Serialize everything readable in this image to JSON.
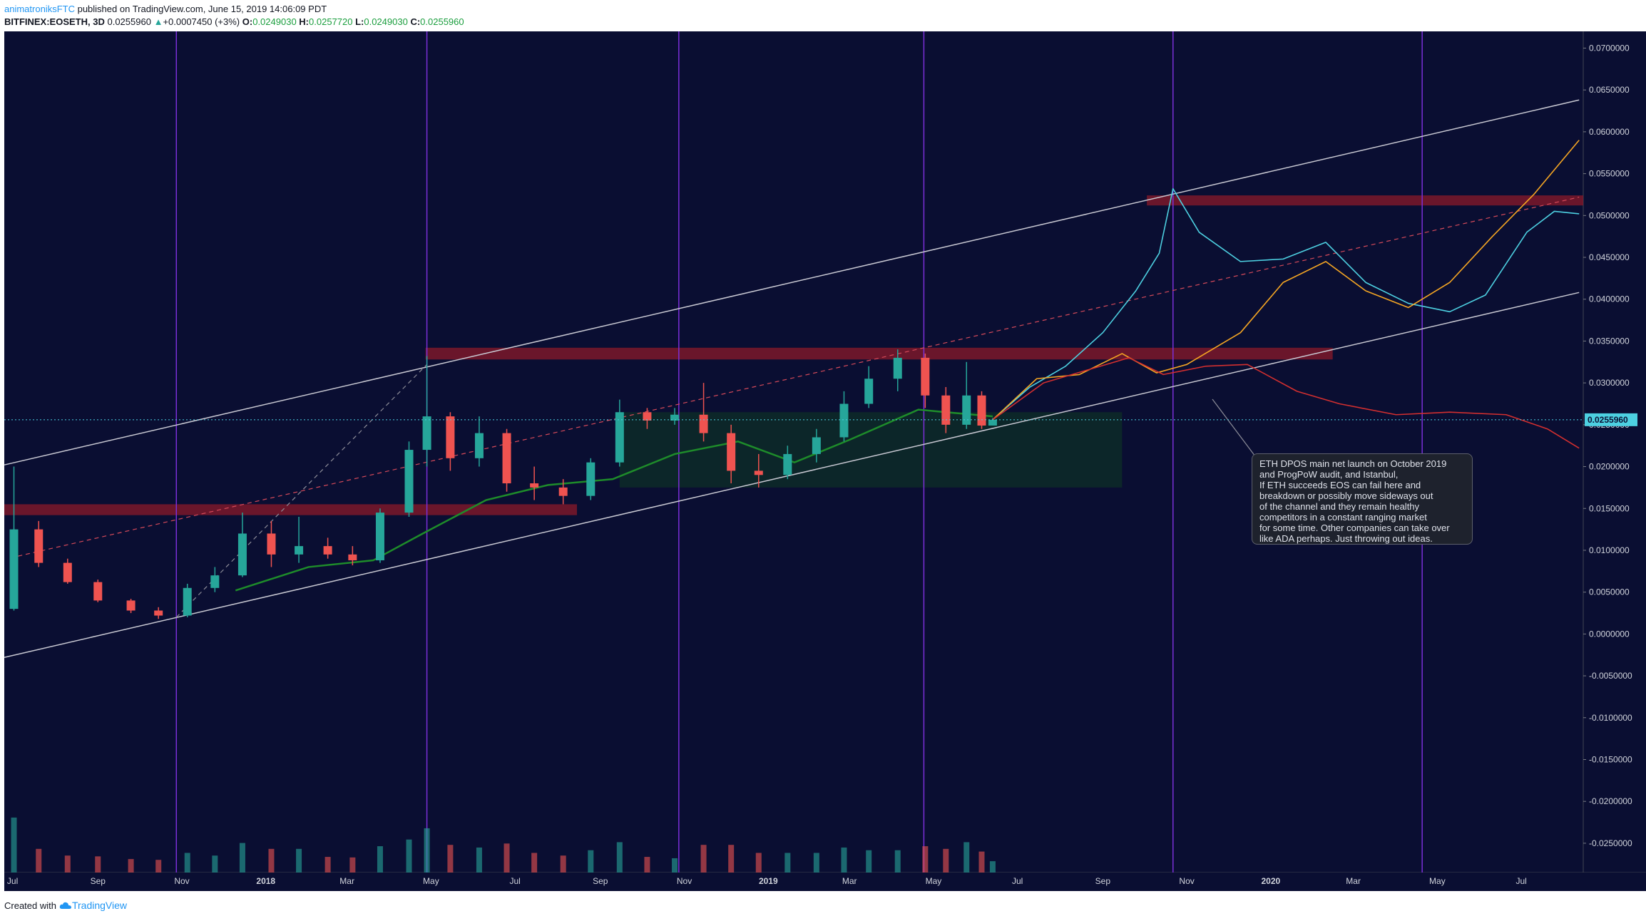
{
  "header": {
    "author": "animatroniksFTC",
    "published": "published on TradingView.com, June 15, 2019 14:06:09 PDT",
    "symbol": "BITFINEX:EOSETH, 3D",
    "last": "0.0255960",
    "change": "+0.0007450 (+3%)",
    "o_label": "O:",
    "o_value": "0.0249030",
    "h_label": "H:",
    "h_value": "0.0257720",
    "l_label": "L:",
    "l_value": "0.0249030",
    "c_label": "C:",
    "c_value": "0.0255960"
  },
  "annotation": "ETH DPOS main net launch on October 2019\nand ProgPoW audit, and Istanbul,\nIf ETH succeeds EOS can fail here and\nbreakdown or possibly move sideways out\nof the channel and they remain healthy\ncompetitors in a constant ranging market\nfor some time. Other companies can take over\nlike ADA perhaps. Just throwing out ideas.",
  "footer": {
    "created_with": "Created with",
    "brand": "TradingView"
  },
  "colors": {
    "background": "#0a0e32",
    "up": "#26a69a",
    "down": "#ef5350",
    "zone": "#8b1a2a",
    "channel": "#c8c8d2",
    "vertical_marker": "#7b2fd8",
    "projection_cyan": "#4dd0e1",
    "projection_orange": "#f5a623",
    "projection_red": "#d32f2f",
    "ma_green": "#1e8c2a",
    "ma_blue": "#2962ff"
  },
  "chart_data": {
    "type": "candlestick",
    "symbol": "BITFINEX:EOSETH",
    "timeframe": "3D",
    "last_price": 0.025596,
    "last_price_label": "0.0255960",
    "ylim": [
      -0.0285,
      0.072
    ],
    "y_ticks": [
      "0.0700000",
      "0.0650000",
      "0.0600000",
      "0.0550000",
      "0.0500000",
      "0.0450000",
      "0.0400000",
      "0.0350000",
      "0.0300000",
      "0.0250000",
      "0.0200000",
      "0.0150000",
      "0.0100000",
      "0.0050000",
      "0.0000000",
      "-0.0050000",
      "-0.0100000",
      "-0.0150000",
      "-0.0200000",
      "-0.0250000"
    ],
    "y_tick_values": [
      0.07,
      0.065,
      0.06,
      0.055,
      0.05,
      0.045,
      0.04,
      0.035,
      0.03,
      0.025,
      0.02,
      0.015,
      0.01,
      0.005,
      0,
      -0.005,
      -0.01,
      -0.015,
      -0.02,
      -0.025
    ],
    "x_range": [
      "2017-06-25",
      "2020-08-15"
    ],
    "x_ticks": [
      {
        "label": "Jul",
        "date": "2017-07-01"
      },
      {
        "label": "Sep",
        "date": "2017-09-01"
      },
      {
        "label": "Nov",
        "date": "2017-11-01"
      },
      {
        "label": "2018",
        "date": "2018-01-01",
        "bold": true
      },
      {
        "label": "Mar",
        "date": "2018-03-01"
      },
      {
        "label": "May",
        "date": "2018-05-01"
      },
      {
        "label": "Jul",
        "date": "2018-07-01"
      },
      {
        "label": "Sep",
        "date": "2018-09-01"
      },
      {
        "label": "Nov",
        "date": "2018-11-01"
      },
      {
        "label": "2019",
        "date": "2019-01-01",
        "bold": true
      },
      {
        "label": "Mar",
        "date": "2019-03-01"
      },
      {
        "label": "May",
        "date": "2019-05-01"
      },
      {
        "label": "Jul",
        "date": "2019-07-01"
      },
      {
        "label": "Sep",
        "date": "2019-09-01"
      },
      {
        "label": "Nov",
        "date": "2019-11-01"
      },
      {
        "label": "2020",
        "date": "2020-01-01",
        "bold": true
      },
      {
        "label": "Mar",
        "date": "2020-03-01"
      },
      {
        "label": "May",
        "date": "2020-05-01"
      },
      {
        "label": "Jul",
        "date": "2020-07-01"
      }
    ],
    "vertical_markers": [
      "2017-10-28",
      "2018-04-28",
      "2018-10-28",
      "2019-04-24",
      "2019-10-22",
      "2020-04-20"
    ],
    "zones": [
      {
        "start": "2017-06-25",
        "end": "2018-08-15",
        "low": 0.0142,
        "high": 0.0155
      },
      {
        "start": "2018-04-27",
        "end": "2020-02-15",
        "low": 0.0328,
        "high": 0.0342
      },
      {
        "start": "2019-10-03",
        "end": "2020-08-15",
        "low": 0.0512,
        "high": 0.0524
      }
    ],
    "channel_lines": [
      {
        "name": "upper",
        "points": [
          [
            "2017-06-25",
            0.0202
          ],
          [
            "2020-08-12",
            0.0638
          ]
        ]
      },
      {
        "name": "lower",
        "points": [
          [
            "2017-06-25",
            -0.0028
          ],
          [
            "2020-08-12",
            0.0408
          ]
        ]
      }
    ],
    "dashed_lines": [
      {
        "color": "red",
        "points": [
          [
            "2017-07-05",
            0.0093
          ],
          [
            "2020-08-12",
            0.0522
          ]
        ]
      },
      {
        "color": "gray",
        "points": [
          [
            "2017-10-28",
            0.002
          ],
          [
            "2018-04-28",
            0.0322
          ]
        ]
      }
    ],
    "candles_monthly_ohlc": [
      [
        "2017-07-02",
        0.003,
        0.02,
        0.0028,
        0.0125
      ],
      [
        "2017-07-20",
        0.0125,
        0.0135,
        0.008,
        0.0085
      ],
      [
        "2017-08-10",
        0.0085,
        0.009,
        0.006,
        0.0062
      ],
      [
        "2017-09-01",
        0.0062,
        0.0065,
        0.0038,
        0.004
      ],
      [
        "2017-09-25",
        0.004,
        0.0042,
        0.0025,
        0.0028
      ],
      [
        "2017-10-15",
        0.0028,
        0.0032,
        0.0018,
        0.0022
      ],
      [
        "2017-11-05",
        0.0022,
        0.006,
        0.002,
        0.0055
      ],
      [
        "2017-11-25",
        0.0055,
        0.008,
        0.005,
        0.007
      ],
      [
        "2017-12-15",
        0.007,
        0.0145,
        0.0068,
        0.012
      ],
      [
        "2018-01-05",
        0.012,
        0.0135,
        0.008,
        0.0095
      ],
      [
        "2018-01-25",
        0.0095,
        0.014,
        0.0085,
        0.0105
      ],
      [
        "2018-02-15",
        0.0105,
        0.0115,
        0.009,
        0.0095
      ],
      [
        "2018-03-05",
        0.0095,
        0.0105,
        0.0082,
        0.0088
      ],
      [
        "2018-03-25",
        0.0088,
        0.015,
        0.0085,
        0.0145
      ],
      [
        "2018-04-15",
        0.0145,
        0.023,
        0.014,
        0.022
      ],
      [
        "2018-04-28",
        0.022,
        0.0332,
        0.02,
        0.026
      ],
      [
        "2018-05-15",
        0.026,
        0.0265,
        0.0195,
        0.021
      ],
      [
        "2018-06-05",
        0.021,
        0.026,
        0.02,
        0.024
      ],
      [
        "2018-06-25",
        0.024,
        0.0245,
        0.017,
        0.018
      ],
      [
        "2018-07-15",
        0.018,
        0.02,
        0.016,
        0.0175
      ],
      [
        "2018-08-05",
        0.0175,
        0.0185,
        0.0155,
        0.0165
      ],
      [
        "2018-08-25",
        0.0165,
        0.021,
        0.016,
        0.0205
      ],
      [
        "2018-09-15",
        0.0205,
        0.028,
        0.02,
        0.0265
      ],
      [
        "2018-10-05",
        0.0265,
        0.027,
        0.0245,
        0.0255
      ],
      [
        "2018-10-25",
        0.0255,
        0.027,
        0.025,
        0.0262
      ],
      [
        "2018-11-15",
        0.0262,
        0.03,
        0.023,
        0.024
      ],
      [
        "2018-12-05",
        0.024,
        0.025,
        0.018,
        0.0195
      ],
      [
        "2018-12-25",
        0.0195,
        0.0215,
        0.0175,
        0.019
      ],
      [
        "2019-01-15",
        0.019,
        0.0225,
        0.0185,
        0.0215
      ],
      [
        "2019-02-05",
        0.0215,
        0.0245,
        0.0205,
        0.0235
      ],
      [
        "2019-02-25",
        0.0235,
        0.029,
        0.023,
        0.0275
      ],
      [
        "2019-03-15",
        0.0275,
        0.032,
        0.027,
        0.0305
      ],
      [
        "2019-04-05",
        0.0305,
        0.034,
        0.029,
        0.033
      ],
      [
        "2019-04-25",
        0.033,
        0.0335,
        0.027,
        0.0285
      ],
      [
        "2019-05-10",
        0.0285,
        0.0295,
        0.024,
        0.025
      ],
      [
        "2019-05-25",
        0.025,
        0.0325,
        0.0245,
        0.0285
      ],
      [
        "2019-06-05",
        0.0285,
        0.029,
        0.0245,
        0.0249
      ],
      [
        "2019-06-13",
        0.0249,
        0.0258,
        0.0249,
        0.0256
      ]
    ],
    "projections": [
      {
        "color": "cyan",
        "points": [
          [
            "2019-06-13",
            0.0256
          ],
          [
            "2019-07-10",
            0.0295
          ],
          [
            "2019-08-05",
            0.032
          ],
          [
            "2019-09-01",
            0.036
          ],
          [
            "2019-09-25",
            0.041
          ],
          [
            "2019-10-12",
            0.0455
          ],
          [
            "2019-10-22",
            0.0532
          ],
          [
            "2019-11-10",
            0.048
          ],
          [
            "2019-12-10",
            0.0445
          ],
          [
            "2020-01-10",
            0.0448
          ],
          [
            "2020-02-10",
            0.0468
          ],
          [
            "2020-03-10",
            0.042
          ],
          [
            "2020-04-10",
            0.0395
          ],
          [
            "2020-05-10",
            0.0385
          ],
          [
            "2020-06-05",
            0.0405
          ],
          [
            "2020-07-05",
            0.048
          ],
          [
            "2020-07-25",
            0.0505
          ],
          [
            "2020-08-12",
            0.0502
          ]
        ]
      },
      {
        "color": "orange",
        "points": [
          [
            "2019-06-13",
            0.0256
          ],
          [
            "2019-07-15",
            0.0305
          ],
          [
            "2019-08-15",
            0.031
          ],
          [
            "2019-09-15",
            0.0335
          ],
          [
            "2019-10-10",
            0.0312
          ],
          [
            "2019-11-01",
            0.0322
          ],
          [
            "2019-12-10",
            0.036
          ],
          [
            "2020-01-10",
            0.042
          ],
          [
            "2020-02-10",
            0.0445
          ],
          [
            "2020-03-10",
            0.041
          ],
          [
            "2020-04-10",
            0.039
          ],
          [
            "2020-05-10",
            0.042
          ],
          [
            "2020-06-10",
            0.0475
          ],
          [
            "2020-07-10",
            0.0525
          ],
          [
            "2020-08-12",
            0.059
          ]
        ]
      },
      {
        "color": "red",
        "points": [
          [
            "2019-06-13",
            0.0256
          ],
          [
            "2019-07-20",
            0.03
          ],
          [
            "2019-08-20",
            0.0315
          ],
          [
            "2019-09-20",
            0.033
          ],
          [
            "2019-10-15",
            0.031
          ],
          [
            "2019-11-15",
            0.032
          ],
          [
            "2019-12-15",
            0.0322
          ],
          [
            "2020-01-20",
            0.029
          ],
          [
            "2020-02-20",
            0.0275
          ],
          [
            "2020-04-01",
            0.0262
          ],
          [
            "2020-05-10",
            0.0265
          ],
          [
            "2020-06-20",
            0.0262
          ],
          [
            "2020-07-20",
            0.0245
          ],
          [
            "2020-08-12",
            0.0222
          ]
        ]
      }
    ],
    "moving_average_green": [
      [
        "2017-12-10",
        0.0052
      ],
      [
        "2018-02-01",
        0.008
      ],
      [
        "2018-03-20",
        0.0088
      ],
      [
        "2018-04-25",
        0.012
      ],
      [
        "2018-06-10",
        0.016
      ],
      [
        "2018-07-25",
        0.0178
      ],
      [
        "2018-09-10",
        0.0185
      ],
      [
        "2018-10-25",
        0.0215
      ],
      [
        "2018-12-10",
        0.023
      ],
      [
        "2019-01-20",
        0.0205
      ],
      [
        "2019-03-01",
        0.0232
      ],
      [
        "2019-04-20",
        0.0268
      ],
      [
        "2019-06-13",
        0.026
      ]
    ],
    "cloud": {
      "start": "2018-09-15",
      "end": "2019-09-15",
      "top": 0.0265,
      "bottom": 0.0175
    },
    "volume_ylim": [
      0,
      0.31
    ]
  }
}
